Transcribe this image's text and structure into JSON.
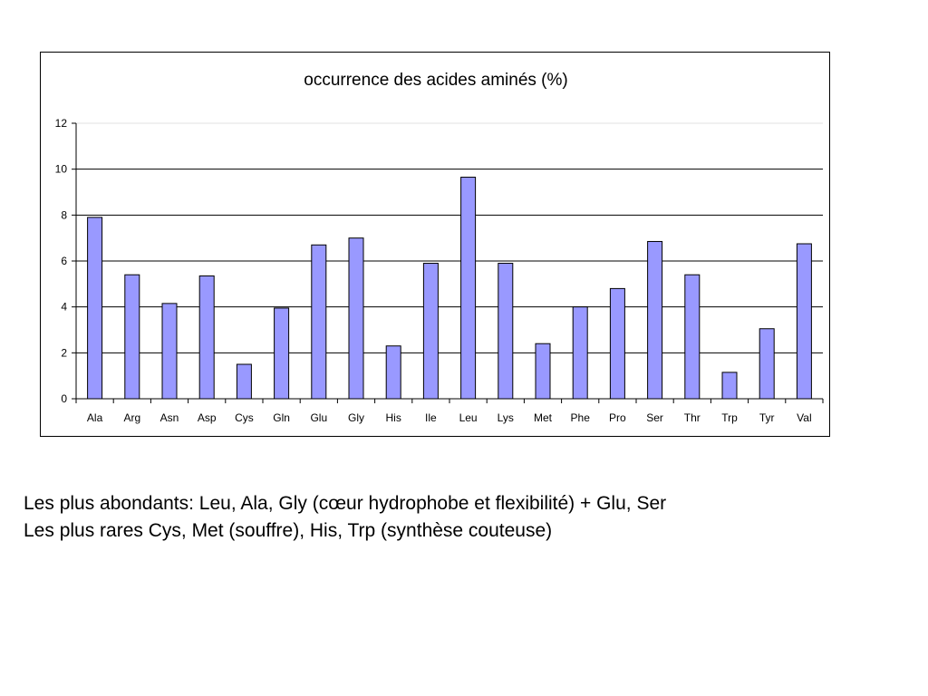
{
  "chart_data": {
    "type": "bar",
    "title": "occurrence des acides aminés (%)",
    "xlabel": "",
    "ylabel": "",
    "categories": [
      "Ala",
      "Arg",
      "Asn",
      "Asp",
      "Cys",
      "Gln",
      "Glu",
      "Gly",
      "His",
      "Ile",
      "Leu",
      "Lys",
      "Met",
      "Phe",
      "Pro",
      "Ser",
      "Thr",
      "Trp",
      "Tyr",
      "Val"
    ],
    "values": [
      7.9,
      5.4,
      4.15,
      5.35,
      1.5,
      3.95,
      6.7,
      7.0,
      2.3,
      5.9,
      9.65,
      5.9,
      2.4,
      4.0,
      4.8,
      6.85,
      5.4,
      1.15,
      3.05,
      6.75
    ],
    "ylim": [
      0,
      12
    ],
    "yticks": [
      0,
      2,
      4,
      6,
      8,
      10,
      12
    ],
    "grid": true,
    "legend": "none",
    "bar_color": "#9999ff",
    "bar_edge_color": "#000000"
  },
  "captions": {
    "line1": "Les plus abondants: Leu, Ala, Gly (cœur hydrophobe et flexibilité) + Glu, Ser",
    "line2": "Les plus rares Cys, Met (souffre), His, Trp (synthèse couteuse)"
  }
}
